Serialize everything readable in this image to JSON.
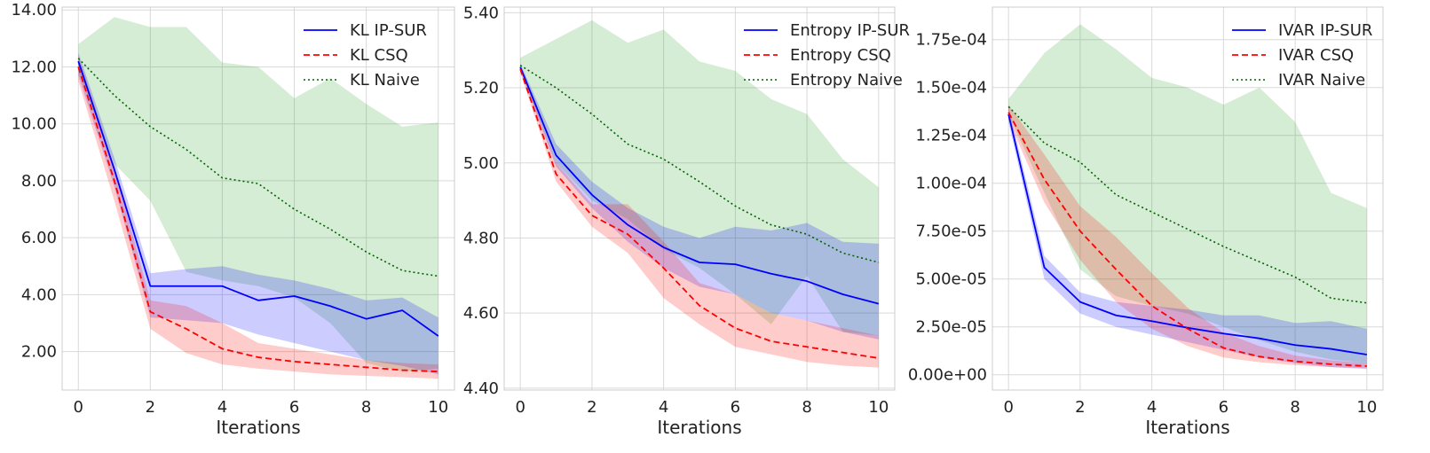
{
  "chart_data": [
    {
      "type": "line",
      "title": "",
      "xlabel": "Iterations",
      "ylabel": "",
      "xlim": [
        -0.45,
        10.45
      ],
      "ylim": [
        0.65,
        14.1
      ],
      "xticks": [
        0,
        2,
        4,
        6,
        8,
        10
      ],
      "xtick_labels": [
        "0",
        "2",
        "4",
        "6",
        "8",
        "10"
      ],
      "yticks": [
        2,
        4,
        6,
        8,
        10,
        12,
        14
      ],
      "ytick_labels": [
        "2.00",
        "4.00",
        "6.00",
        "8.00",
        "10.00",
        "12.00",
        "14.00"
      ],
      "legend": "top-right",
      "grid": true,
      "x": [
        0,
        1,
        2,
        3,
        4,
        5,
        6,
        7,
        8,
        9,
        10
      ],
      "series": [
        {
          "name": "KL IP-SUR",
          "color": "#0000ff",
          "dash": "solid",
          "values": [
            12.2,
            8.4,
            4.3,
            4.3,
            4.3,
            3.8,
            3.95,
            3.6,
            3.15,
            3.45,
            2.55
          ],
          "band_lower": [
            11.7,
            7.8,
            3.2,
            3.1,
            3.0,
            2.6,
            2.3,
            2.0,
            1.7,
            1.5,
            1.2
          ],
          "band_upper": [
            12.5,
            8.8,
            4.75,
            4.9,
            5.0,
            4.7,
            4.5,
            4.2,
            3.8,
            3.9,
            3.2
          ],
          "band_color": "#0000ff"
        },
        {
          "name": "KL CSQ",
          "color": "#ff0000",
          "dash": "dashed",
          "values": [
            12.0,
            8.0,
            3.4,
            2.8,
            2.1,
            1.8,
            1.65,
            1.55,
            1.45,
            1.35,
            1.3
          ],
          "band_lower": [
            11.5,
            7.3,
            2.8,
            1.95,
            1.55,
            1.4,
            1.3,
            1.2,
            1.15,
            1.1,
            1.05
          ],
          "band_upper": [
            12.4,
            8.5,
            3.8,
            3.6,
            3.0,
            2.3,
            2.1,
            1.9,
            1.7,
            1.6,
            1.55
          ],
          "band_color": "#ff0000"
        },
        {
          "name": "KL Naive",
          "color": "#006400",
          "dash": "dotted",
          "values": [
            12.3,
            11.0,
            9.9,
            9.1,
            8.1,
            7.9,
            7.0,
            6.3,
            5.5,
            4.85,
            4.65
          ],
          "band_lower": [
            11.8,
            8.6,
            7.3,
            4.8,
            4.5,
            4.3,
            3.9,
            3.0,
            1.6,
            1.3,
            1.4
          ],
          "band_upper": [
            12.8,
            13.75,
            13.4,
            13.4,
            12.15,
            12.0,
            10.9,
            11.6,
            10.7,
            9.9,
            10.05
          ],
          "band_color": "#2ca02c"
        }
      ]
    },
    {
      "type": "line",
      "title": "",
      "xlabel": "Iterations",
      "ylabel": "",
      "xlim": [
        -0.45,
        10.45
      ],
      "ylim": [
        4.395,
        5.415
      ],
      "xticks": [
        0,
        2,
        4,
        6,
        8,
        10
      ],
      "xtick_labels": [
        "0",
        "2",
        "4",
        "6",
        "8",
        "10"
      ],
      "yticks": [
        4.4,
        4.6,
        4.8,
        5.0,
        5.2,
        5.4
      ],
      "ytick_labels": [
        "4.40",
        "4.60",
        "4.80",
        "5.00",
        "5.20",
        "5.40"
      ],
      "legend": "top-right",
      "grid": true,
      "x": [
        0,
        1,
        2,
        3,
        4,
        5,
        6,
        7,
        8,
        9,
        10
      ],
      "series": [
        {
          "name": "Entropy IP-SUR",
          "color": "#0000ff",
          "dash": "solid",
          "values": [
            5.255,
            5.02,
            4.915,
            4.835,
            4.775,
            4.735,
            4.73,
            4.705,
            4.685,
            4.65,
            4.625
          ],
          "band_lower": [
            5.245,
            4.99,
            4.88,
            4.79,
            4.72,
            4.67,
            4.65,
            4.6,
            4.58,
            4.55,
            4.53
          ],
          "band_upper": [
            5.265,
            5.05,
            4.95,
            4.88,
            4.83,
            4.8,
            4.83,
            4.82,
            4.84,
            4.79,
            4.785
          ],
          "band_color": "#0000ff"
        },
        {
          "name": "Entropy CSQ",
          "color": "#ff0000",
          "dash": "dashed",
          "values": [
            5.25,
            4.97,
            4.86,
            4.81,
            4.72,
            4.62,
            4.56,
            4.525,
            4.51,
            4.495,
            4.48
          ],
          "band_lower": [
            5.24,
            4.95,
            4.83,
            4.76,
            4.64,
            4.57,
            4.51,
            4.49,
            4.47,
            4.46,
            4.455
          ],
          "band_upper": [
            5.26,
            5.0,
            4.89,
            4.89,
            4.79,
            4.68,
            4.65,
            4.6,
            4.58,
            4.56,
            4.54
          ],
          "band_color": "#ff0000"
        },
        {
          "name": "Entropy Naive",
          "color": "#006400",
          "dash": "dotted",
          "values": [
            5.26,
            5.2,
            5.13,
            5.05,
            5.01,
            4.95,
            4.885,
            4.835,
            4.81,
            4.76,
            4.735
          ],
          "band_lower": [
            5.25,
            5.0,
            4.9,
            4.85,
            4.77,
            4.72,
            4.65,
            4.57,
            4.7,
            4.55,
            4.54
          ],
          "band_upper": [
            5.28,
            5.33,
            5.38,
            5.32,
            5.355,
            5.27,
            5.245,
            5.17,
            5.13,
            5.01,
            4.935
          ],
          "band_color": "#2ca02c"
        }
      ]
    },
    {
      "type": "line",
      "title": "",
      "xlabel": "Iterations",
      "ylabel": "",
      "xlim": [
        -0.45,
        10.45
      ],
      "ylim": [
        -8e-06,
        0.000192
      ],
      "xticks": [
        0,
        2,
        4,
        6,
        8,
        10
      ],
      "xtick_labels": [
        "0",
        "2",
        "4",
        "6",
        "8",
        "10"
      ],
      "yticks": [
        0,
        2.5e-05,
        5e-05,
        7.5e-05,
        0.0001,
        0.000125,
        0.00015,
        0.000175
      ],
      "ytick_labels": [
        "0.00e+00",
        "2.50e-05",
        "5.00e-05",
        "7.50e-05",
        "1.00e-04",
        "1.25e-04",
        "1.50e-04",
        "1.75e-04"
      ],
      "legend": "top-right",
      "grid": true,
      "x": [
        0,
        1,
        2,
        3,
        4,
        5,
        6,
        7,
        8,
        9,
        10
      ],
      "series": [
        {
          "name": "IVAR IP-SUR",
          "color": "#0000ff",
          "dash": "solid",
          "values": [
            0.000136,
            5.6e-05,
            3.8e-05,
            3.1e-05,
            2.8e-05,
            2.45e-05,
            2.15e-05,
            1.9e-05,
            1.55e-05,
            1.35e-05,
            1.05e-05
          ],
          "band_lower": [
            0.000132,
            5e-05,
            3.2e-05,
            2.5e-05,
            2.1e-05,
            1.7e-05,
            1.3e-05,
            9e-06,
            6e-06,
            4e-06,
            3e-06
          ],
          "band_upper": [
            0.00014,
            6.2e-05,
            4.3e-05,
            3.8e-05,
            3.6e-05,
            3.4e-05,
            3.1e-05,
            3.1e-05,
            2.7e-05,
            2.8e-05,
            2.4e-05
          ],
          "band_color": "#0000ff"
        },
        {
          "name": "IVAR CSQ",
          "color": "#ff0000",
          "dash": "dashed",
          "values": [
            0.000137,
            0.000102,
            7.5e-05,
            5.5e-05,
            3.6e-05,
            2.4e-05,
            1.4e-05,
            9.5e-06,
            7e-06,
            5.5e-06,
            4.5e-06
          ],
          "band_lower": [
            0.000133,
            9e-05,
            6e-05,
            3.8e-05,
            2.4e-05,
            1.5e-05,
            9e-06,
            6.5e-06,
            5e-06,
            4e-06,
            3.5e-06
          ],
          "band_upper": [
            0.000141,
            0.000115,
            8.8e-05,
            7.2e-05,
            5.3e-05,
            3.5e-05,
            2.2e-05,
            1.5e-05,
            1e-05,
            7.5e-06,
            6e-06
          ],
          "band_color": "#ff0000"
        },
        {
          "name": "IVAR Naive",
          "color": "#006400",
          "dash": "dotted",
          "values": [
            0.00014,
            0.000121,
            0.000111,
            9.4e-05,
            8.5e-05,
            7.6e-05,
            6.7e-05,
            5.9e-05,
            5.1e-05,
            4e-05,
            3.75e-05
          ],
          "band_lower": [
            0.000136,
            9.5e-05,
            5.5e-05,
            4.1e-05,
            3.6e-05,
            3.2e-05,
            2.5e-05,
            1.8e-05,
            1.2e-05,
            8e-06,
            6e-06
          ],
          "band_upper": [
            0.000144,
            0.000168,
            0.000183,
            0.00017,
            0.000155,
            0.00015,
            0.000141,
            0.00015,
            0.000132,
            9.5e-05,
            8.7e-05
          ],
          "band_color": "#2ca02c"
        }
      ]
    }
  ]
}
